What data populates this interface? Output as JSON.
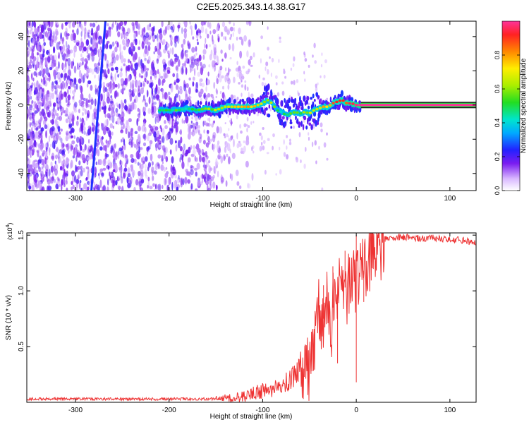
{
  "title": "C2E5.2025.343.14.38.G17",
  "chart_data": [
    {
      "type": "heatmap",
      "title": "C2E5.2025.343.14.38.G17",
      "xlabel": "Height of straight line (km)",
      "ylabel": "Frequency (Hz)",
      "xlim": [
        -352,
        128
      ],
      "ylim": [
        -50,
        49
      ],
      "xticks": [
        -300,
        -200,
        -100,
        0,
        100
      ],
      "xtick_labels": [
        "-300",
        "-200",
        "-100",
        "0",
        "100"
      ],
      "yticks": [
        -40,
        -20,
        0,
        20,
        40
      ],
      "ytick_labels": [
        "-40",
        "-20",
        "0",
        "20",
        "40"
      ],
      "colorbar": {
        "label": "Normalized spectral amplitude",
        "range": [
          0,
          1
        ],
        "ticks": [
          0.0,
          0.2,
          0.4,
          0.6,
          0.8
        ],
        "tick_labels": [
          "0.0",
          "0.2",
          "0.4",
          "0.6",
          "0.8"
        ]
      },
      "ridge": {
        "name": "signal frequency track",
        "x": [
          -210,
          -200,
          -190,
          -180,
          -170,
          -160,
          -150,
          -140,
          -130,
          -120,
          -110,
          -100,
          -95,
          -90,
          -85,
          -80,
          -75,
          -70,
          -65,
          -60,
          -55,
          -50,
          -45,
          -40,
          -35,
          -30,
          -25,
          -20,
          -15,
          -10,
          -5,
          0,
          5
        ],
        "y": [
          -3,
          -3,
          -3,
          -2,
          -3,
          -2,
          -3,
          -1,
          -1,
          -1,
          -1,
          1,
          3,
          1,
          -3,
          -4,
          -6,
          -5,
          -4,
          -5,
          -4,
          -5,
          -3,
          -2,
          -1,
          -1,
          1,
          2,
          3,
          1,
          1,
          0,
          0
        ],
        "amplitude": [
          0.4,
          0.4,
          0.45,
          0.4,
          0.45,
          0.5,
          0.55,
          0.6,
          0.65,
          0.7,
          0.7,
          0.6,
          0.55,
          0.5,
          0.45,
          0.4,
          0.4,
          0.45,
          0.5,
          0.45,
          0.5,
          0.55,
          0.55,
          0.6,
          0.65,
          0.7,
          0.75,
          0.8,
          0.85,
          0.85,
          0.9,
          0.95,
          0.95
        ]
      },
      "steady_band": {
        "x": [
          5,
          128
        ],
        "y": 0,
        "amplitude": 1.0
      },
      "diagonal_streak": {
        "x": [
          -283,
          -268
        ],
        "y": [
          -50,
          49
        ],
        "amplitude": 0.25
      },
      "noise_region": {
        "x": [
          -352,
          -140
        ],
        "amplitude_range": [
          0.0,
          0.25
        ]
      }
    },
    {
      "type": "line",
      "xlabel": "Height of straight line (km)",
      "ylabel": "SNR (10 * v/v)",
      "scale_label": "(x10",
      "scale_exponent": "4",
      "scale_suffix": ")",
      "xlim": [
        -352,
        128
      ],
      "ylim": [
        0,
        1.52
      ],
      "xticks": [
        -300,
        -200,
        -100,
        0,
        100
      ],
      "xtick_labels": [
        "-300",
        "-200",
        "-100",
        "0",
        "100"
      ],
      "yticks": [
        0.5,
        1.0,
        1.5
      ],
      "ytick_labels": [
        "0.5",
        "1.0",
        "1.5"
      ],
      "series": [
        {
          "name": "SNR",
          "color": "#ee3333",
          "x": [
            -352,
            -300,
            -250,
            -200,
            -150,
            -130,
            -120,
            -110,
            -100,
            -90,
            -80,
            -70,
            -60,
            -50,
            -45,
            -40,
            -35,
            -30,
            -25,
            -20,
            -15,
            -10,
            -5,
            0,
            5,
            10,
            15,
            20,
            25,
            30,
            35,
            40,
            50,
            60,
            70,
            80,
            90,
            100,
            110,
            120,
            128
          ],
          "y": [
            0.03,
            0.03,
            0.03,
            0.03,
            0.03,
            0.04,
            0.06,
            0.08,
            0.1,
            0.12,
            0.15,
            0.2,
            0.3,
            0.45,
            0.55,
            0.65,
            0.75,
            0.8,
            0.85,
            0.9,
            1.0,
            1.05,
            1.1,
            1.15,
            1.15,
            1.2,
            1.3,
            1.4,
            1.43,
            1.46,
            1.47,
            1.48,
            1.48,
            1.48,
            1.47,
            1.48,
            1.47,
            1.46,
            1.46,
            1.44,
            1.44
          ]
        }
      ],
      "spikes": [
        {
          "x": -35,
          "y": 1.05
        },
        {
          "x": -25,
          "y": 1.22
        },
        {
          "x": -12,
          "y": 1.36
        },
        {
          "x": 0,
          "y": 1.5
        },
        {
          "x": 0,
          "y": 0.18
        },
        {
          "x": -20,
          "y": 0.35
        },
        {
          "x": 8,
          "y": 0.9
        }
      ]
    }
  ]
}
